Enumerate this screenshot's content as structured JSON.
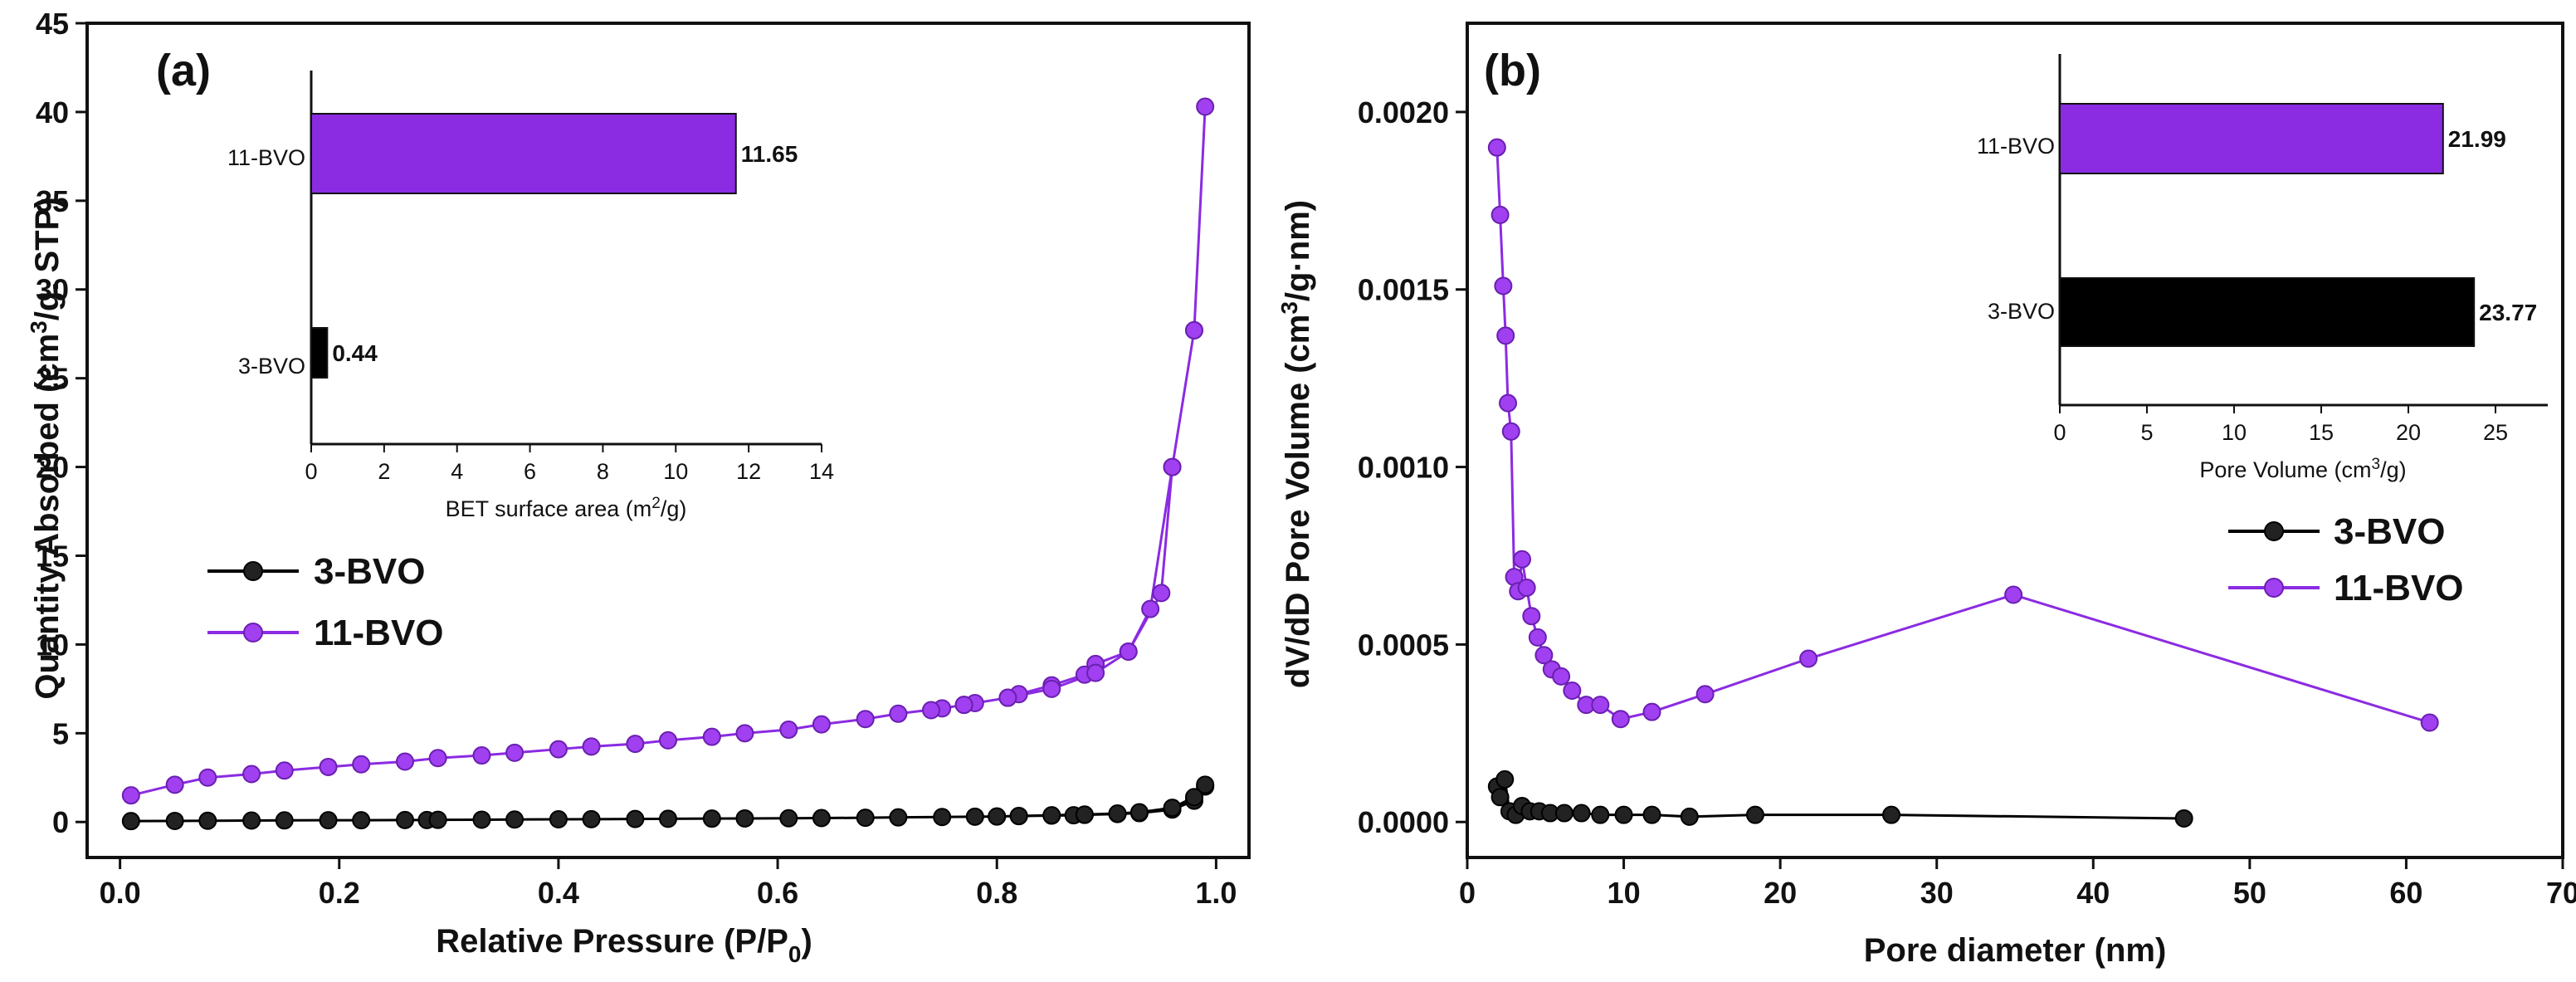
{
  "chart_data": [
    {
      "id": "a",
      "panel_label": "(a)",
      "type": "line",
      "xlabel_main": "Relative Pressure (P/P",
      "xlabel_sub": "0",
      "xlabel_tail": ")",
      "ylabel_pre": "Quantity Absorbed (cm",
      "ylabel_sup": "3",
      "ylabel_post": "/g. STP)",
      "xlim": [
        -0.03,
        1.03
      ],
      "ylim": [
        -2,
        45
      ],
      "xticks": [
        0.0,
        0.2,
        0.4,
        0.6,
        0.8,
        1.0
      ],
      "xtick_labels": [
        "0.0",
        "0.2",
        "0.4",
        "0.6",
        "0.8",
        "1.0"
      ],
      "yticks": [
        0,
        5,
        10,
        15,
        20,
        25,
        30,
        35,
        40,
        45
      ],
      "ytick_labels": [
        "0",
        "5",
        "10",
        "15",
        "20",
        "25",
        "30",
        "35",
        "40",
        "45"
      ],
      "legend_position": "middle-left",
      "series": [
        {
          "name": "3-BVO",
          "color": "#000000",
          "marker_fill": "#222222",
          "x": [
            0.01,
            0.05,
            0.08,
            0.12,
            0.15,
            0.19,
            0.22,
            0.26,
            0.28,
            0.29,
            0.33,
            0.36,
            0.4,
            0.43,
            0.47,
            0.5,
            0.54,
            0.57,
            0.61,
            0.64,
            0.68,
            0.71,
            0.75,
            0.78,
            0.8,
            0.82,
            0.85,
            0.87,
            0.88,
            0.91,
            0.93,
            0.96,
            0.98,
            0.99,
            0.99,
            0.98,
            0.96,
            0.93,
            0.91,
            0.88,
            0.85,
            0.82,
            0.8
          ],
          "y": [
            0.05,
            0.06,
            0.07,
            0.08,
            0.09,
            0.1,
            0.1,
            0.11,
            0.11,
            0.12,
            0.13,
            0.14,
            0.15,
            0.16,
            0.17,
            0.18,
            0.19,
            0.2,
            0.21,
            0.22,
            0.24,
            0.26,
            0.28,
            0.3,
            0.31,
            0.33,
            0.36,
            0.38,
            0.4,
            0.45,
            0.5,
            0.7,
            1.2,
            2.0,
            2.1,
            1.4,
            0.8,
            0.55,
            0.48,
            0.42,
            0.38,
            0.34,
            0.31
          ]
        },
        {
          "name": "11-BVO",
          "color": "#8B2BE2",
          "marker_fill": "#A040F0",
          "x": [
            0.01,
            0.05,
            0.08,
            0.12,
            0.15,
            0.19,
            0.22,
            0.26,
            0.29,
            0.33,
            0.36,
            0.4,
            0.43,
            0.47,
            0.5,
            0.54,
            0.57,
            0.61,
            0.64,
            0.68,
            0.71,
            0.75,
            0.77,
            0.78,
            0.81,
            0.82,
            0.85,
            0.88,
            0.89,
            0.92,
            0.94,
            0.96,
            0.98,
            0.99,
            0.98,
            0.96,
            0.95,
            0.92,
            0.89,
            0.85,
            0.81,
            0.77,
            0.74
          ],
          "y": [
            1.5,
            2.1,
            2.5,
            2.7,
            2.9,
            3.1,
            3.25,
            3.4,
            3.6,
            3.75,
            3.9,
            4.1,
            4.25,
            4.4,
            4.6,
            4.8,
            5.0,
            5.2,
            5.5,
            5.8,
            6.1,
            6.4,
            6.6,
            6.7,
            7.0,
            7.2,
            7.7,
            8.3,
            8.9,
            9.6,
            12.0,
            20.0,
            27.7,
            40.3,
            27.7,
            20.0,
            12.9,
            9.6,
            8.4,
            7.5,
            7.0,
            6.6,
            6.3
          ]
        }
      ],
      "inset": {
        "type": "bar",
        "orientation": "horizontal",
        "categories": [
          "11-BVO",
          "3-BVO"
        ],
        "values": [
          11.65,
          0.44
        ],
        "value_labels": [
          "11.65",
          "0.44"
        ],
        "colors": [
          "#8B2BE2",
          "#000000"
        ],
        "xlabel_pre": "BET surface area (m",
        "xlabel_sup": "2",
        "xlabel_post": "/g)",
        "xlim": [
          0,
          14
        ],
        "xticks": [
          0,
          2,
          4,
          6,
          8,
          10,
          12,
          14
        ],
        "xtick_labels": [
          "0",
          "2",
          "4",
          "6",
          "8",
          "10",
          "12",
          "14"
        ]
      }
    },
    {
      "id": "b",
      "panel_label": "(b)",
      "type": "line",
      "xlabel": "Pore diameter (nm)",
      "ylabel_pre": "dV/dD Pore Volume (cm",
      "ylabel_sup": "3",
      "ylabel_post": "/g·nm)",
      "xlim": [
        0,
        70
      ],
      "ylim": [
        -0.0001,
        0.00225
      ],
      "xticks": [
        0,
        10,
        20,
        30,
        40,
        50,
        60,
        70
      ],
      "xtick_labels": [
        "0",
        "10",
        "20",
        "30",
        "40",
        "50",
        "60",
        "70"
      ],
      "yticks": [
        0,
        0.0005,
        0.001,
        0.0015,
        0.002
      ],
      "ytick_labels": [
        "0.0000",
        "0.0005",
        "0.0010",
        "0.0015",
        "0.0020"
      ],
      "legend_position": "middle-right",
      "series": [
        {
          "name": "3-BVO",
          "color": "#000000",
          "marker_fill": "#222222",
          "x": [
            1.9,
            2.1,
            2.4,
            2.7,
            3.1,
            3.5,
            4.0,
            4.6,
            5.3,
            6.2,
            7.3,
            8.5,
            10.0,
            11.8,
            14.2,
            18.4,
            27.1,
            45.8
          ],
          "y": [
            0.0001,
            7e-05,
            0.00012,
            3e-05,
            2e-05,
            4.5e-05,
            3e-05,
            3e-05,
            2.5e-05,
            2.5e-05,
            2.5e-05,
            2e-05,
            2e-05,
            2e-05,
            1.5e-05,
            2e-05,
            2e-05,
            1e-05
          ]
        },
        {
          "name": "11-BVO",
          "color": "#8B2BE2",
          "marker_fill": "#A040F0",
          "x": [
            1.9,
            2.1,
            2.3,
            2.45,
            2.6,
            2.8,
            3.0,
            3.25,
            3.5,
            3.8,
            4.1,
            4.5,
            4.9,
            5.4,
            6.0,
            6.7,
            7.6,
            8.5,
            9.8,
            11.8,
            15.2,
            21.8,
            34.9,
            61.5
          ],
          "y": [
            0.0019,
            0.00171,
            0.00151,
            0.00137,
            0.00118,
            0.0011,
            0.00069,
            0.00065,
            0.00074,
            0.00066,
            0.00058,
            0.00052,
            0.00047,
            0.00043,
            0.00041,
            0.00037,
            0.00033,
            0.00033,
            0.00029,
            0.00031,
            0.00036,
            0.00046,
            0.00064,
            0.00028
          ]
        }
      ],
      "inset": {
        "type": "bar",
        "orientation": "horizontal",
        "categories": [
          "11-BVO",
          "3-BVO"
        ],
        "values": [
          21.99,
          23.77
        ],
        "value_labels": [
          "21.99",
          "23.77"
        ],
        "colors": [
          "#8B2BE2",
          "#000000"
        ],
        "xlabel_pre": "Pore Volume (cm",
        "xlabel_sup": "3",
        "xlabel_post": "/g)",
        "xlim": [
          0,
          28
        ],
        "xticks": [
          0,
          5,
          10,
          15,
          20,
          25
        ],
        "xtick_labels": [
          "0",
          "5",
          "10",
          "15",
          "20",
          "25"
        ]
      }
    }
  ]
}
